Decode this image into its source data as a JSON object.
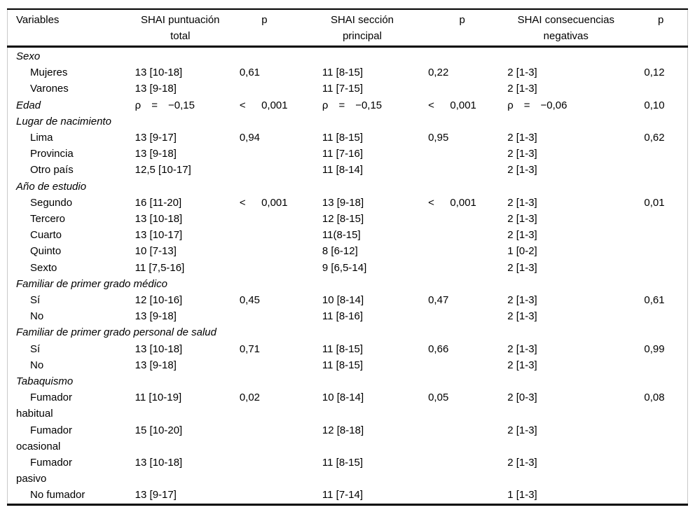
{
  "table": {
    "headers": [
      "Variables",
      "SHAI puntuación\ntotal",
      "p",
      "SHAI sección\nprincipal",
      "p",
      "SHAI consecuencias\nnegativas",
      "p"
    ],
    "rows": [
      {
        "kind": "section",
        "label": "Sexo"
      },
      {
        "kind": "item",
        "label": "Mujeres",
        "total": "13 [10-18]",
        "p1": "0,61",
        "main": "11 [8-15]",
        "p2": "0,22",
        "neg": "2 [1-3]",
        "p3": "0,12"
      },
      {
        "kind": "item",
        "label": "Varones",
        "total": "13 [9-18]",
        "p1": "",
        "main": "11 [7-15]",
        "p2": "",
        "neg": "2 [1-3]",
        "p3": ""
      },
      {
        "kind": "section-values",
        "label": "Edad",
        "total": "ρ = −0,15",
        "p1": "<  0,001",
        "main": "ρ = −0,15",
        "p2": "<  0,001",
        "neg": "ρ = −0,06",
        "p3": "0,10"
      },
      {
        "kind": "section",
        "label": "Lugar de nacimiento"
      },
      {
        "kind": "item",
        "label": "Lima",
        "total": "13 [9-17]",
        "p1": "0,94",
        "main": "11 [8-15]",
        "p2": "0,95",
        "neg": "2 [1-3]",
        "p3": "0,62"
      },
      {
        "kind": "item",
        "label": "Provincia",
        "total": "13 [9-18]",
        "p1": "",
        "main": "11 [7-16]",
        "p2": "",
        "neg": "2 [1-3]",
        "p3": ""
      },
      {
        "kind": "item",
        "label": "Otro país",
        "total": "12,5 [10-17]",
        "p1": "",
        "main": "11 [8-14]",
        "p2": "",
        "neg": "2 [1-3]",
        "p3": ""
      },
      {
        "kind": "section",
        "label": "Año de estudio"
      },
      {
        "kind": "item",
        "label": "Segundo",
        "total": "16 [11-20]",
        "p1": "<  0,001",
        "main": "13 [9-18]",
        "p2": "<  0,001",
        "neg": "2 [1-3]",
        "p3": "0,01"
      },
      {
        "kind": "item",
        "label": "Tercero",
        "total": "13 [10-18]",
        "p1": "",
        "main": "12 [8-15]",
        "p2": "",
        "neg": "2 [1-3]",
        "p3": ""
      },
      {
        "kind": "item",
        "label": "Cuarto",
        "total": "13 [10-17]",
        "p1": "",
        "main": "11(8-15]",
        "p2": "",
        "neg": "2 [1-3]",
        "p3": ""
      },
      {
        "kind": "item",
        "label": "Quinto",
        "total": "10 [7-13]",
        "p1": "",
        "main": "8 [6-12]",
        "p2": "",
        "neg": "1 [0-2]",
        "p3": ""
      },
      {
        "kind": "item",
        "label": "Sexto",
        "total": "11 [7,5-16]",
        "p1": "",
        "main": "9 [6,5-14]",
        "p2": "",
        "neg": "2 [1-3]",
        "p3": ""
      },
      {
        "kind": "section",
        "label": "Familiar de primer grado médico"
      },
      {
        "kind": "item",
        "label": "Sí",
        "total": "12 [10-16]",
        "p1": "0,45",
        "main": "10 [8-14]",
        "p2": "0,47",
        "neg": "2 [1-3]",
        "p3": "0,61"
      },
      {
        "kind": "item",
        "label": "No",
        "total": "13 [9-18]",
        "p1": "",
        "main": "11 [8-16]",
        "p2": "",
        "neg": "2 [1-3]",
        "p3": ""
      },
      {
        "kind": "section",
        "label": "Familiar de primer grado personal de salud"
      },
      {
        "kind": "item",
        "label": "Sí",
        "total": "13 [10-18]",
        "p1": "0,71",
        "main": "11 [8-15]",
        "p2": "0,66",
        "neg": "2 [1-3]",
        "p3": "0,99"
      },
      {
        "kind": "item",
        "label": "No",
        "total": "13 [9-18]",
        "p1": "",
        "main": "11 [8-15]",
        "p2": "",
        "neg": "2 [1-3]",
        "p3": ""
      },
      {
        "kind": "section",
        "label": "Tabaquismo"
      },
      {
        "kind": "item",
        "label": "Fumador\nhabitual",
        "total": "11 [10-19]",
        "p1": "0,02",
        "main": "10 [8-14]",
        "p2": "0,05",
        "neg": "2 [0-3]",
        "p3": "0,08"
      },
      {
        "kind": "item",
        "label": "Fumador\nocasional",
        "total": "15 [10-20]",
        "p1": "",
        "main": "12 [8-18]",
        "p2": "",
        "neg": "2 [1-3]",
        "p3": ""
      },
      {
        "kind": "item",
        "label": "Fumador\npasivo",
        "total": "13 [10-18]",
        "p1": "",
        "main": "11 [8-15]",
        "p2": "",
        "neg": "2 [1-3]",
        "p3": ""
      },
      {
        "kind": "item",
        "label": "No fumador",
        "total": "13 [9-17]",
        "p1": "",
        "main": "11 [7-14]",
        "p2": "",
        "neg": "1 [1-3]",
        "p3": ""
      }
    ]
  }
}
